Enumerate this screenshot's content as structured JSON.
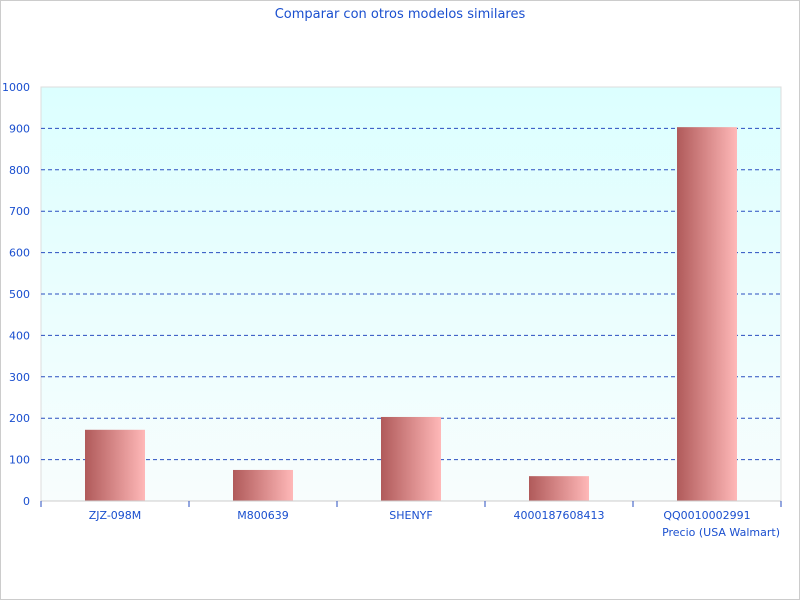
{
  "chart_data": {
    "type": "bar",
    "title": "Comparar con otros modelos similares",
    "xlabel": "Precio (USA Walmart)",
    "ylabel": "",
    "categories": [
      "ZJZ-098M",
      "M800639",
      "SHENYF",
      "4000187608413",
      "QQ0010002991"
    ],
    "values": [
      172,
      75,
      203,
      60,
      903
    ],
    "ylim": [
      0,
      1000
    ],
    "yticks": [
      0,
      100,
      200,
      300,
      400,
      500,
      600,
      700,
      800,
      900,
      1000
    ],
    "grid": true,
    "legend": "none",
    "colors": {
      "bar_dark": "#b05a5a",
      "bar_light": "#ffb8b8",
      "grid": "#2a4fc0",
      "text": "#1a4fcf",
      "plot_bg_top": "#dcffff",
      "plot_bg_bottom": "#f8fdfd"
    }
  }
}
